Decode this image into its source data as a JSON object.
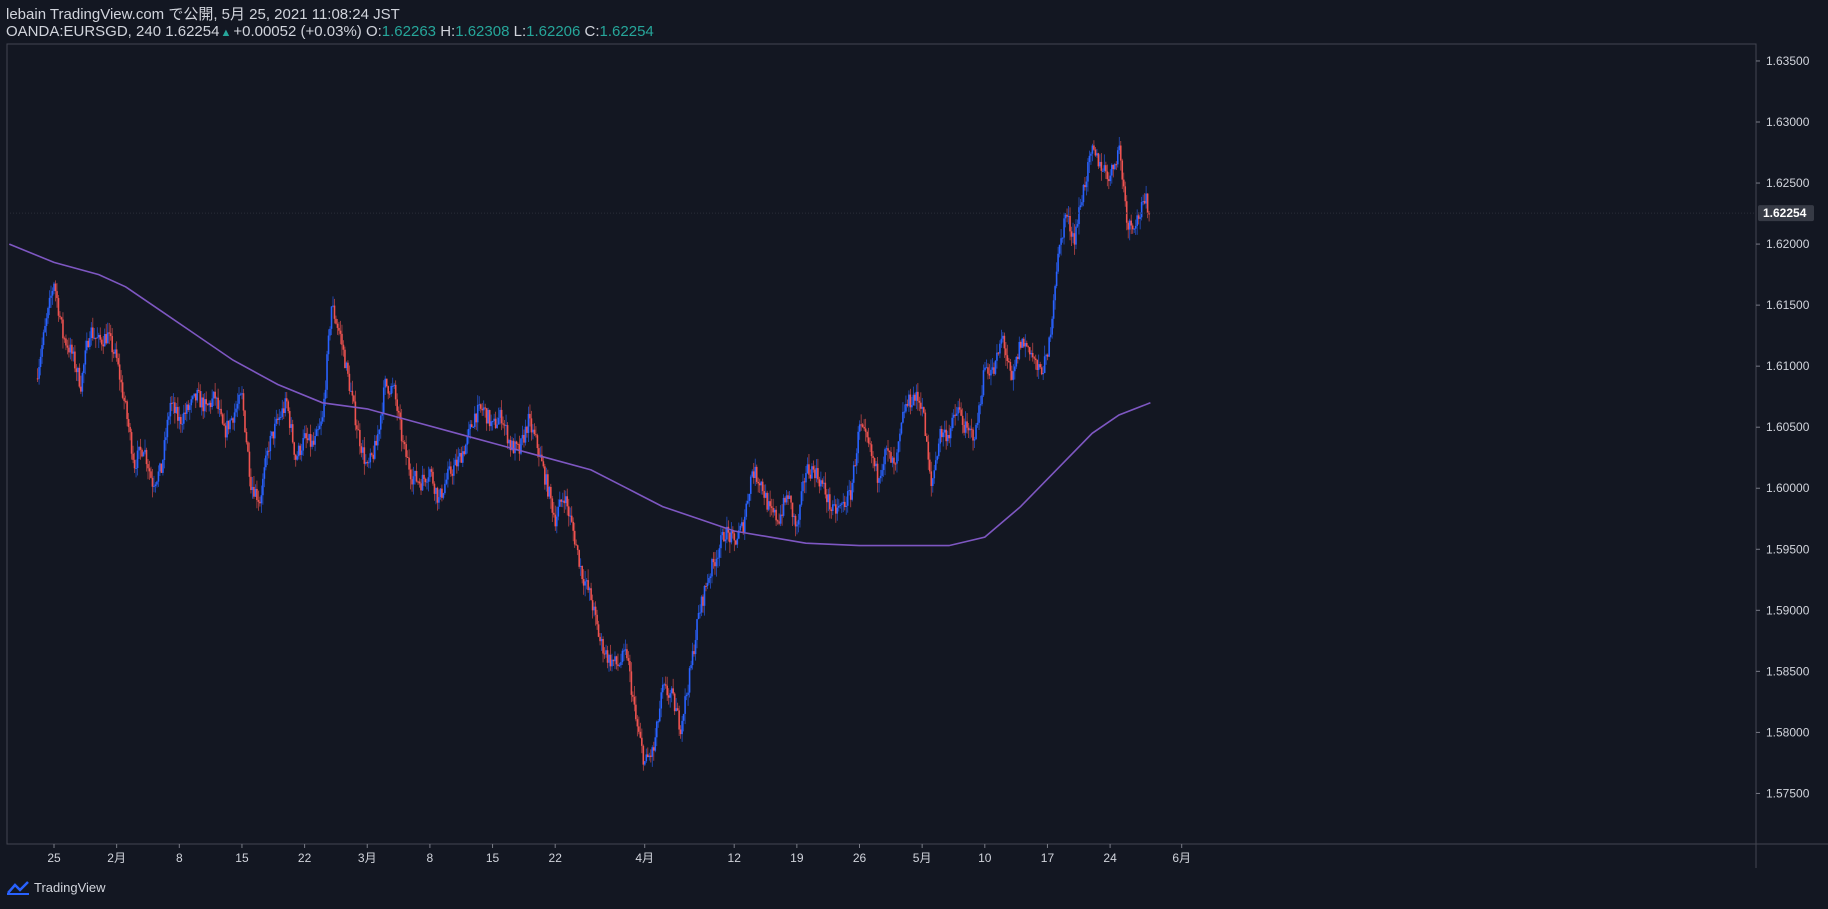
{
  "header": {
    "line1": "lebain TradingView.com で公開, 5月 25, 2021 11:08:24 JST",
    "symbol": "OANDA:EURSGD, 240",
    "last": "1.62254",
    "change": "+0.00052 (+0.03%)",
    "o_label": "O:",
    "o_value": "1.62263",
    "h_label": "H:",
    "h_value": "1.62308",
    "l_label": "L:",
    "l_value": "1.62206",
    "c_label": "C:",
    "c_value": "1.62254"
  },
  "footer": {
    "brand": "TradingView"
  },
  "colors": {
    "background": "#131722",
    "up": "#2962ff",
    "down": "#ef5350",
    "ma": "#7e57c2",
    "text": "#d1d4dc",
    "accent": "#26a69a"
  },
  "chart_data": {
    "type": "candlestick",
    "ylim": [
      1.5715,
      1.6365
    ],
    "y_ticks": [
      "1.63500",
      "1.63000",
      "1.62500",
      "1.62000",
      "1.61500",
      "1.61000",
      "1.60500",
      "1.60000",
      "1.59500",
      "1.59000",
      "1.58500",
      "1.58000",
      "1.57500"
    ],
    "y_tick_values": [
      1.635,
      1.63,
      1.625,
      1.62,
      1.615,
      1.61,
      1.605,
      1.6,
      1.595,
      1.59,
      1.585,
      1.58,
      1.575
    ],
    "x_ticks": [
      "25",
      "2月",
      "8",
      "15",
      "22",
      "3月",
      "8",
      "15",
      "22",
      "4月",
      "12",
      "19",
      "26",
      "5月",
      "10",
      "17",
      "24",
      "6月"
    ],
    "x_tick_days": [
      0,
      7,
      14,
      21,
      28,
      35,
      42,
      49,
      56,
      66,
      76,
      83,
      90,
      97,
      104,
      111,
      118,
      126
    ],
    "last_price": 1.62254,
    "last_price_label": "1.62254",
    "price_path": [
      [
        -2,
        1.609
      ],
      [
        0,
        1.617
      ],
      [
        1,
        1.6125
      ],
      [
        2,
        1.611
      ],
      [
        3,
        1.6085
      ],
      [
        4,
        1.613
      ],
      [
        5,
        1.612
      ],
      [
        6,
        1.6125
      ],
      [
        7,
        1.6105
      ],
      [
        8,
        1.6065
      ],
      [
        9,
        1.602
      ],
      [
        10,
        1.6035
      ],
      [
        11,
        1.6005
      ],
      [
        12,
        1.6015
      ],
      [
        13,
        1.607
      ],
      [
        14,
        1.6055
      ],
      [
        15,
        1.6065
      ],
      [
        16,
        1.6075
      ],
      [
        17,
        1.6065
      ],
      [
        18,
        1.6075
      ],
      [
        19,
        1.6045
      ],
      [
        20,
        1.606
      ],
      [
        21,
        1.6075
      ],
      [
        22,
        1.6005
      ],
      [
        23,
        1.599
      ],
      [
        24,
        1.6035
      ],
      [
        25,
        1.6055
      ],
      [
        26,
        1.607
      ],
      [
        27,
        1.6025
      ],
      [
        28,
        1.604
      ],
      [
        29,
        1.6035
      ],
      [
        30,
        1.6055
      ],
      [
        31,
        1.615
      ],
      [
        32,
        1.6125
      ],
      [
        33,
        1.6085
      ],
      [
        34,
        1.6045
      ],
      [
        35,
        1.6015
      ],
      [
        36,
        1.6035
      ],
      [
        37,
        1.6085
      ],
      [
        38,
        1.608
      ],
      [
        39,
        1.6035
      ],
      [
        40,
        1.601
      ],
      [
        41,
        1.6005
      ],
      [
        42,
        1.6015
      ],
      [
        43,
        1.599
      ],
      [
        44,
        1.601
      ],
      [
        45,
        1.602
      ],
      [
        46,
        1.6035
      ],
      [
        47,
        1.606
      ],
      [
        48,
        1.6065
      ],
      [
        49,
        1.605
      ],
      [
        50,
        1.606
      ],
      [
        51,
        1.6035
      ],
      [
        52,
        1.603
      ],
      [
        53,
        1.6055
      ],
      [
        54,
        1.6035
      ],
      [
        55,
        1.6005
      ],
      [
        56,
        1.5975
      ],
      [
        57,
        1.5995
      ],
      [
        58,
        1.5965
      ],
      [
        59,
        1.593
      ],
      [
        60,
        1.591
      ],
      [
        61,
        1.5875
      ],
      [
        62,
        1.586
      ],
      [
        63,
        1.5855
      ],
      [
        64,
        1.5865
      ],
      [
        65,
        1.581
      ],
      [
        66,
        1.5775
      ],
      [
        67,
        1.5785
      ],
      [
        68,
        1.5835
      ],
      [
        69,
        1.583
      ],
      [
        70,
        1.5805
      ],
      [
        71,
        1.5845
      ],
      [
        72,
        1.5895
      ],
      [
        73,
        1.5925
      ],
      [
        74,
        1.5945
      ],
      [
        75,
        1.5965
      ],
      [
        76,
        1.5955
      ],
      [
        77,
        1.597
      ],
      [
        78,
        1.6015
      ],
      [
        79,
        1.6005
      ],
      [
        80,
        1.598
      ],
      [
        81,
        1.5975
      ],
      [
        82,
        1.5995
      ],
      [
        83,
        1.5965
      ],
      [
        84,
        1.6015
      ],
      [
        85,
        1.6015
      ],
      [
        86,
        1.6
      ],
      [
        87,
        1.598
      ],
      [
        88,
        1.5985
      ],
      [
        89,
        1.5995
      ],
      [
        90,
        1.605
      ],
      [
        91,
        1.6035
      ],
      [
        92,
        1.601
      ],
      [
        93,
        1.603
      ],
      [
        94,
        1.6015
      ],
      [
        95,
        1.6065
      ],
      [
        96,
        1.6075
      ],
      [
        97,
        1.607
      ],
      [
        98,
        1.6
      ],
      [
        99,
        1.6045
      ],
      [
        100,
        1.6045
      ],
      [
        101,
        1.6065
      ],
      [
        102,
        1.6045
      ],
      [
        103,
        1.6045
      ],
      [
        104,
        1.61
      ],
      [
        105,
        1.6095
      ],
      [
        106,
        1.6125
      ],
      [
        107,
        1.6085
      ],
      [
        108,
        1.612
      ],
      [
        109,
        1.6115
      ],
      [
        110,
        1.6095
      ],
      [
        111,
        1.6105
      ],
      [
        112,
        1.618
      ],
      [
        113,
        1.6225
      ],
      [
        114,
        1.6205
      ],
      [
        115,
        1.6245
      ],
      [
        116,
        1.6275
      ],
      [
        117,
        1.6265
      ],
      [
        118,
        1.6255
      ],
      [
        119,
        1.628
      ],
      [
        120,
        1.6215
      ],
      [
        121,
        1.622
      ],
      [
        122,
        1.6235
      ],
      [
        122.5,
        1.6225
      ]
    ],
    "series": [
      {
        "type": "line",
        "points": [
          [
            -5,
            1.62
          ],
          [
            0,
            1.6185
          ],
          [
            5,
            1.6175
          ],
          [
            8,
            1.6165
          ],
          [
            12,
            1.6145
          ],
          [
            16,
            1.6125
          ],
          [
            20,
            1.6105
          ],
          [
            25,
            1.6085
          ],
          [
            30,
            1.607
          ],
          [
            35,
            1.6065
          ],
          [
            40,
            1.6055
          ],
          [
            45,
            1.6045
          ],
          [
            50,
            1.6035
          ],
          [
            55,
            1.6025
          ],
          [
            60,
            1.6015
          ],
          [
            64,
            1.6
          ],
          [
            68,
            1.5985
          ],
          [
            72,
            1.5975
          ],
          [
            76,
            1.5965
          ],
          [
            80,
            1.596
          ],
          [
            84,
            1.5955
          ],
          [
            90,
            1.5953
          ],
          [
            95,
            1.5953
          ],
          [
            100,
            1.5953
          ],
          [
            104,
            1.596
          ],
          [
            108,
            1.5985
          ],
          [
            112,
            1.6015
          ],
          [
            116,
            1.6045
          ],
          [
            119,
            1.606
          ],
          [
            122.5,
            1.607
          ]
        ]
      }
    ]
  }
}
